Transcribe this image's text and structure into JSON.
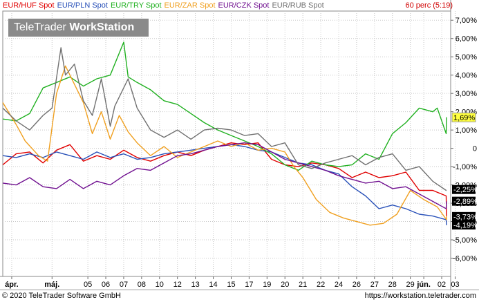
{
  "legend": [
    {
      "label": "EUR/HUF Spot",
      "color": "#e00000"
    },
    {
      "label": "EUR/PLN Spot",
      "color": "#2850b8"
    },
    {
      "label": "EUR/TRY Spot",
      "color": "#20b020"
    },
    {
      "label": "EUR/ZAR Spot",
      "color": "#f0a020"
    },
    {
      "label": "EUR/CZK Spot",
      "color": "#701090"
    },
    {
      "label": "EUR/RUB Spot",
      "color": "#707070"
    }
  ],
  "timeframe": "60 perc (5:19)",
  "logo": {
    "part1": "TeleTrader ",
    "part2": "WorkStation"
  },
  "footer": {
    "copyright": "© 2020 TeleTrader Software GmbH",
    "url": "https://workstation.teletrader.com"
  },
  "chart_data": {
    "type": "line",
    "ylim": [
      -7,
      7.5
    ],
    "y_ticks": [
      "7,00%",
      "6,00%",
      "5,00%",
      "4,00%",
      "3,00%",
      "2,00%",
      "1,00%",
      "0",
      "-1,00%",
      "-2,00%",
      "-3,00%",
      "-4,00%",
      "-5,00%",
      "-6,00%"
    ],
    "y_tick_values": [
      7,
      6,
      5,
      4,
      3,
      2,
      1,
      0,
      -1,
      -2,
      -3,
      -4,
      -5,
      -6
    ],
    "xlim": [
      0,
      100
    ],
    "x_ticks": [
      {
        "label": "ápr.",
        "x": 2,
        "bold": true
      },
      {
        "label": "máj.",
        "x": 11,
        "bold": true
      },
      {
        "label": "05",
        "x": 19
      },
      {
        "label": "06",
        "x": 23
      },
      {
        "label": "07",
        "x": 27
      },
      {
        "label": "08",
        "x": 31
      },
      {
        "label": "10",
        "x": 35
      },
      {
        "label": "12",
        "x": 39
      },
      {
        "label": "13",
        "x": 43
      },
      {
        "label": "14",
        "x": 47
      },
      {
        "label": "15",
        "x": 51
      },
      {
        "label": "17",
        "x": 55
      },
      {
        "label": "19",
        "x": 59
      },
      {
        "label": "20",
        "x": 63
      },
      {
        "label": "21",
        "x": 67
      },
      {
        "label": "22",
        "x": 71
      },
      {
        "label": "24",
        "x": 75
      },
      {
        "label": "26",
        "x": 79
      },
      {
        "label": "27",
        "x": 83
      },
      {
        "label": "28",
        "x": 87
      },
      {
        "label": "29",
        "x": 91
      },
      {
        "label": "jún.",
        "x": 94,
        "bold": true
      },
      {
        "label": "02",
        "x": 98
      },
      {
        "label": "03",
        "x": 101
      }
    ],
    "grid": true,
    "series": [
      {
        "name": "EUR/HUF Spot",
        "color": "#e00000",
        "last_label": "-3,73%",
        "last_value": -3.73,
        "label_bg": "#000000",
        "x": [
          0,
          3,
          6,
          9,
          12,
          15,
          18,
          21,
          24,
          27,
          30,
          33,
          36,
          39,
          42,
          45,
          48,
          51,
          54,
          57,
          60,
          63,
          66,
          69,
          72,
          75,
          78,
          81,
          84,
          87,
          90,
          93,
          96,
          99,
          102
        ],
        "y": [
          -0.9,
          -0.3,
          -0.2,
          -0.8,
          -0.1,
          0.2,
          -0.7,
          -0.4,
          -0.6,
          -0.1,
          -0.5,
          -0.7,
          -0.4,
          -0.2,
          -0.4,
          -0.1,
          0.1,
          0.3,
          0.2,
          0.3,
          -0.6,
          -0.9,
          -1.0,
          -0.8,
          -0.9,
          -1.1,
          -1.6,
          -1.3,
          -1.6,
          -1.5,
          -1.3,
          -2.3,
          -2.3,
          -2.6,
          -3.7
        ]
      },
      {
        "name": "EUR/PLN Spot",
        "color": "#2850b8",
        "last_label": "-4,19%",
        "last_value": -4.19,
        "label_bg": "#000000",
        "x": [
          0,
          3,
          6,
          9,
          12,
          15,
          18,
          21,
          24,
          27,
          30,
          33,
          36,
          39,
          42,
          45,
          48,
          51,
          54,
          57,
          60,
          63,
          66,
          69,
          72,
          75,
          78,
          81,
          84,
          87,
          90,
          93,
          96,
          99,
          102
        ],
        "y": [
          -0.4,
          -0.5,
          -0.3,
          -0.5,
          -0.2,
          -0.4,
          -0.6,
          -0.2,
          -0.5,
          -0.3,
          -0.6,
          -0.5,
          -0.3,
          -0.2,
          -0.1,
          0.0,
          0.1,
          0.2,
          0.1,
          -0.1,
          -0.2,
          -0.5,
          -0.8,
          -0.9,
          -1.2,
          -1.4,
          -2.1,
          -2.6,
          -3.3,
          -3.1,
          -3.3,
          -3.6,
          -3.7,
          -3.9,
          -4.2
        ]
      },
      {
        "name": "EUR/TRY Spot",
        "color": "#20b020",
        "last_label": "1,69%",
        "last_value": 1.69,
        "label_bg": "#ffff40",
        "x": [
          0,
          3,
          6,
          9,
          12,
          15,
          18,
          21,
          24,
          27,
          28,
          30,
          33,
          36,
          39,
          42,
          45,
          48,
          51,
          54,
          57,
          60,
          63,
          66,
          69,
          72,
          75,
          78,
          81,
          84,
          87,
          90,
          93,
          96,
          97,
          99,
          102
        ],
        "y": [
          1.6,
          1.5,
          1.9,
          3.3,
          3.6,
          3.9,
          3.4,
          3.8,
          4.0,
          5.8,
          3.9,
          3.6,
          3.2,
          2.6,
          2.4,
          1.9,
          1.4,
          1.0,
          0.7,
          0.4,
          0.1,
          -0.3,
          -0.9,
          -1.2,
          -0.7,
          -0.9,
          -1.0,
          -0.9,
          -0.3,
          -0.6,
          0.8,
          1.4,
          2.2,
          2.0,
          2.2,
          0.8,
          1.7
        ]
      },
      {
        "name": "EUR/ZAR Spot",
        "color": "#f0a020",
        "last_label": "-3,73%",
        "last_value": -3.73,
        "label_bg": "#000000",
        "x": [
          0,
          3,
          5,
          8,
          10,
          12,
          14,
          16,
          18,
          20,
          22,
          24,
          26,
          28,
          30,
          33,
          36,
          39,
          42,
          45,
          48,
          51,
          54,
          57,
          60,
          63,
          65,
          67,
          70,
          73,
          76,
          79,
          82,
          85,
          88,
          91,
          94,
          97,
          100,
          102
        ],
        "y": [
          2.5,
          1.3,
          0.4,
          -0.4,
          -0.7,
          3.0,
          4.5,
          3.5,
          2.5,
          0.8,
          2.0,
          0.5,
          1.8,
          0.9,
          0.3,
          -0.4,
          0.1,
          -0.5,
          -0.2,
          0.1,
          0.4,
          0.1,
          0.3,
          -0.1,
          0.0,
          -0.2,
          -1.0,
          -1.6,
          -2.8,
          -3.5,
          -3.8,
          -4.0,
          -4.2,
          -4.1,
          -3.6,
          -2.3,
          -2.8,
          -3.2,
          -3.9,
          -3.7
        ]
      },
      {
        "name": "EUR/CZK Spot",
        "color": "#701090",
        "last_label": "-2,89%",
        "last_value": -2.89,
        "label_bg": "#000000",
        "x": [
          0,
          3,
          6,
          9,
          12,
          15,
          18,
          21,
          24,
          27,
          30,
          33,
          36,
          39,
          42,
          45,
          48,
          51,
          54,
          57,
          60,
          63,
          66,
          69,
          72,
          75,
          78,
          81,
          84,
          87,
          90,
          93,
          96,
          99,
          102
        ],
        "y": [
          -1.9,
          -2.0,
          -1.6,
          -2.1,
          -2.2,
          -1.7,
          -2.2,
          -1.8,
          -2.0,
          -1.5,
          -1.1,
          -1.2,
          -0.8,
          -0.4,
          -0.3,
          -0.1,
          0.1,
          0.2,
          0.3,
          0.2,
          -0.2,
          -0.6,
          -0.8,
          -1.0,
          -1.2,
          -1.5,
          -1.7,
          -1.9,
          -1.8,
          -2.2,
          -2.1,
          -2.5,
          -2.9,
          -3.3,
          -2.9
        ]
      },
      {
        "name": "EUR/RUB Spot",
        "color": "#707070",
        "last_label": "-2,25%",
        "last_value": -2.25,
        "label_bg": "#000000",
        "x": [
          0,
          3,
          6,
          9,
          11,
          13,
          14,
          16,
          18,
          20,
          22,
          24,
          25,
          28,
          30,
          33,
          36,
          39,
          42,
          45,
          48,
          51,
          54,
          57,
          60,
          63,
          66,
          69,
          72,
          75,
          78,
          81,
          84,
          87,
          90,
          93,
          96,
          99,
          102
        ],
        "y": [
          2.2,
          1.5,
          1.0,
          1.8,
          2.2,
          5.5,
          4.0,
          4.6,
          2.6,
          1.8,
          3.8,
          1.2,
          2.3,
          3.8,
          2.2,
          1.0,
          0.6,
          1.0,
          0.5,
          1.0,
          1.1,
          1.0,
          0.7,
          0.8,
          0.1,
          0.3,
          -0.9,
          -1.1,
          -0.8,
          -0.6,
          -0.4,
          -0.9,
          -0.5,
          -0.3,
          -1.2,
          -1.0,
          -1.8,
          -2.3,
          -2.3
        ]
      }
    ]
  }
}
